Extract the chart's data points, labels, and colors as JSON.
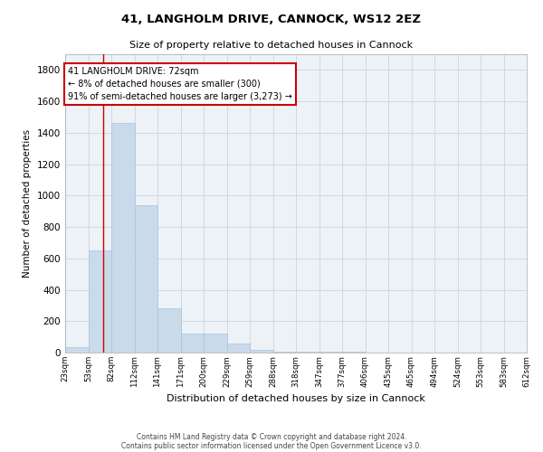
{
  "title1": "41, LANGHOLM DRIVE, CANNOCK, WS12 2EZ",
  "title2": "Size of property relative to detached houses in Cannock",
  "xlabel": "Distribution of detached houses by size in Cannock",
  "ylabel": "Number of detached properties",
  "footer1": "Contains HM Land Registry data © Crown copyright and database right 2024.",
  "footer2": "Contains public sector information licensed under the Open Government Licence v3.0.",
  "bar_edges": [
    23,
    53,
    82,
    112,
    141,
    171,
    200,
    229,
    259,
    288,
    318,
    347,
    377,
    406,
    435,
    465,
    494,
    524,
    553,
    583,
    612
  ],
  "bar_heights": [
    35,
    650,
    1460,
    940,
    280,
    120,
    120,
    60,
    20,
    5,
    5,
    5,
    5,
    0,
    0,
    0,
    0,
    0,
    0,
    0
  ],
  "bar_color": "#c9daea",
  "bar_edgecolor": "#a8c4d8",
  "grid_color": "#ccd4de",
  "background_color": "#edf2f7",
  "vline_x": 72,
  "vline_color": "#cc0000",
  "annotation_text": "41 LANGHOLM DRIVE: 72sqm\n← 8% of detached houses are smaller (300)\n91% of semi-detached houses are larger (3,273) →",
  "annotation_box_color": "#ffffff",
  "annotation_box_edgecolor": "#cc0000",
  "ylim": [
    0,
    1900
  ],
  "yticks": [
    0,
    200,
    400,
    600,
    800,
    1000,
    1200,
    1400,
    1600,
    1800
  ],
  "tick_labels": [
    "23sqm",
    "53sqm",
    "82sqm",
    "112sqm",
    "141sqm",
    "171sqm",
    "200sqm",
    "229sqm",
    "259sqm",
    "288sqm",
    "318sqm",
    "347sqm",
    "377sqm",
    "406sqm",
    "435sqm",
    "465sqm",
    "494sqm",
    "524sqm",
    "553sqm",
    "583sqm",
    "612sqm"
  ]
}
